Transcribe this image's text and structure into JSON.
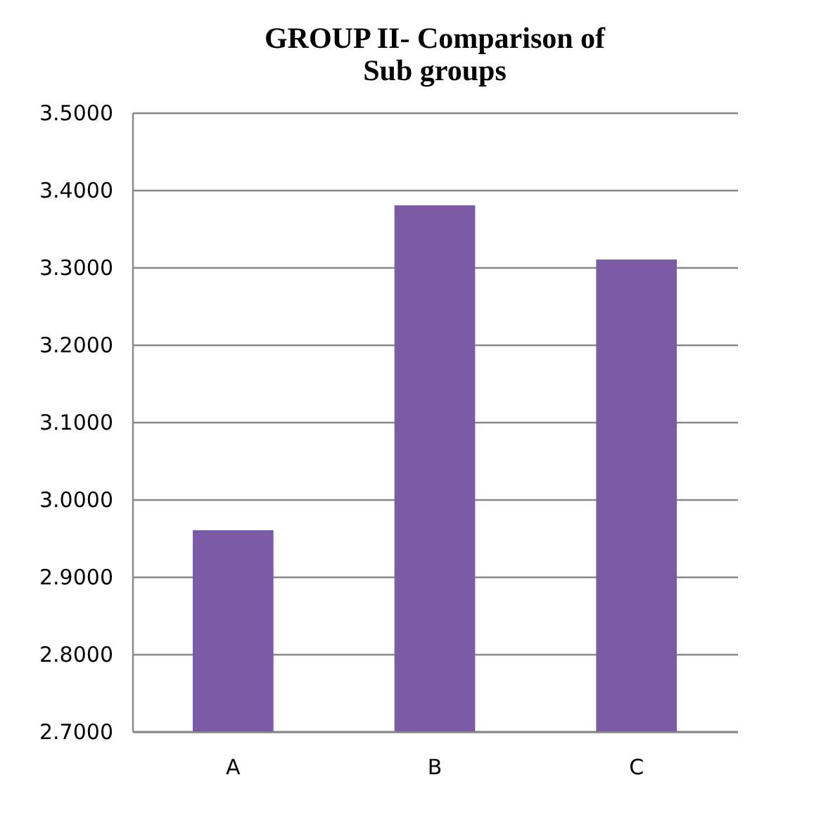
{
  "chart_data": {
    "type": "bar",
    "title": "GROUP II- Comparison of\nSub groups",
    "categories": [
      "A",
      "B",
      "C"
    ],
    "values": [
      2.96,
      3.38,
      3.31
    ],
    "color": "#7b5aa6",
    "ylim": [
      2.7,
      3.5
    ],
    "yticks": [
      {
        "value": 2.7,
        "label": "2.7000"
      },
      {
        "value": 2.8,
        "label": "2.8000"
      },
      {
        "value": 2.9,
        "label": "2.9000"
      },
      {
        "value": 3.0,
        "label": "3.0000"
      },
      {
        "value": 3.1,
        "label": "3.1000"
      },
      {
        "value": 3.2,
        "label": "3.2000"
      },
      {
        "value": 3.3,
        "label": "3.3000"
      },
      {
        "value": 3.4,
        "label": "3.4000"
      },
      {
        "value": 3.5,
        "label": "3.5000"
      }
    ],
    "grid": "y"
  }
}
